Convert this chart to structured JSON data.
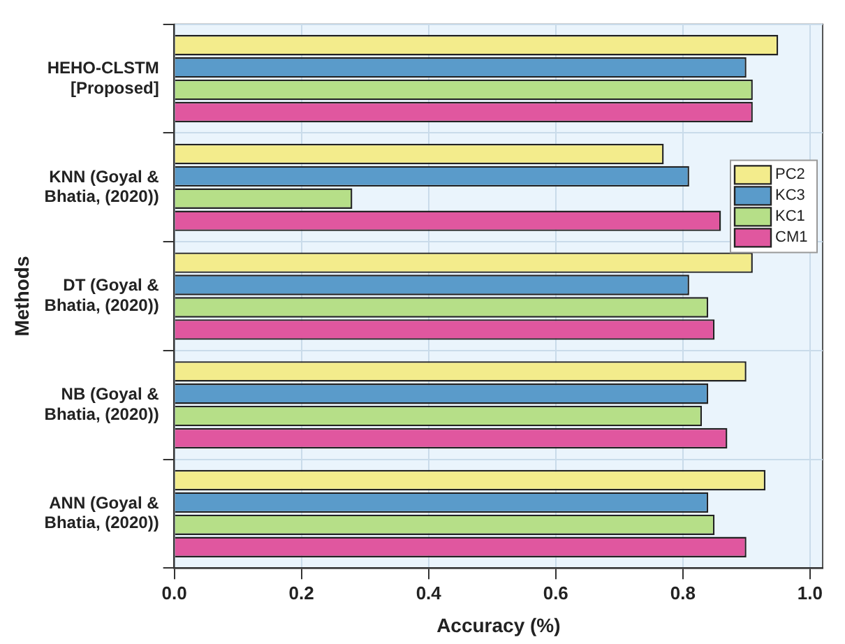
{
  "chart_data": {
    "type": "bar",
    "orientation": "horizontal",
    "xlabel": "Accuracy (%)",
    "ylabel": "Methods",
    "categories": [
      "HEHO-CLSTM [Proposed]",
      "KNN (Goyal & Bhatia, (2020))",
      "DT (Goyal & Bhatia, (2020))",
      "NB (Goyal & Bhatia, (2020))",
      "ANN (Goyal & Bhatia, (2020))"
    ],
    "series": [
      {
        "name": "PC2",
        "color": "#f3ec8c",
        "values": [
          0.95,
          0.77,
          0.91,
          0.9,
          0.93
        ]
      },
      {
        "name": "KC3",
        "color": "#5a9bca",
        "values": [
          0.9,
          0.81,
          0.81,
          0.84,
          0.84
        ]
      },
      {
        "name": "KC1",
        "color": "#b6df88",
        "values": [
          0.91,
          0.28,
          0.84,
          0.83,
          0.85
        ]
      },
      {
        "name": "CM1",
        "color": "#e0579f",
        "values": [
          0.91,
          0.86,
          0.85,
          0.87,
          0.9
        ]
      }
    ],
    "xlim": [
      0,
      1.02
    ],
    "xticks": [
      {
        "value": 0,
        "label": "0.0"
      },
      {
        "value": 0.2,
        "label": "0.2"
      },
      {
        "value": 0.4,
        "label": "0.4"
      },
      {
        "value": 0.6,
        "label": "0.6"
      },
      {
        "value": 0.8,
        "label": "0.8"
      },
      {
        "value": 1,
        "label": "1.0"
      }
    ],
    "grid": true,
    "legend": "right"
  }
}
